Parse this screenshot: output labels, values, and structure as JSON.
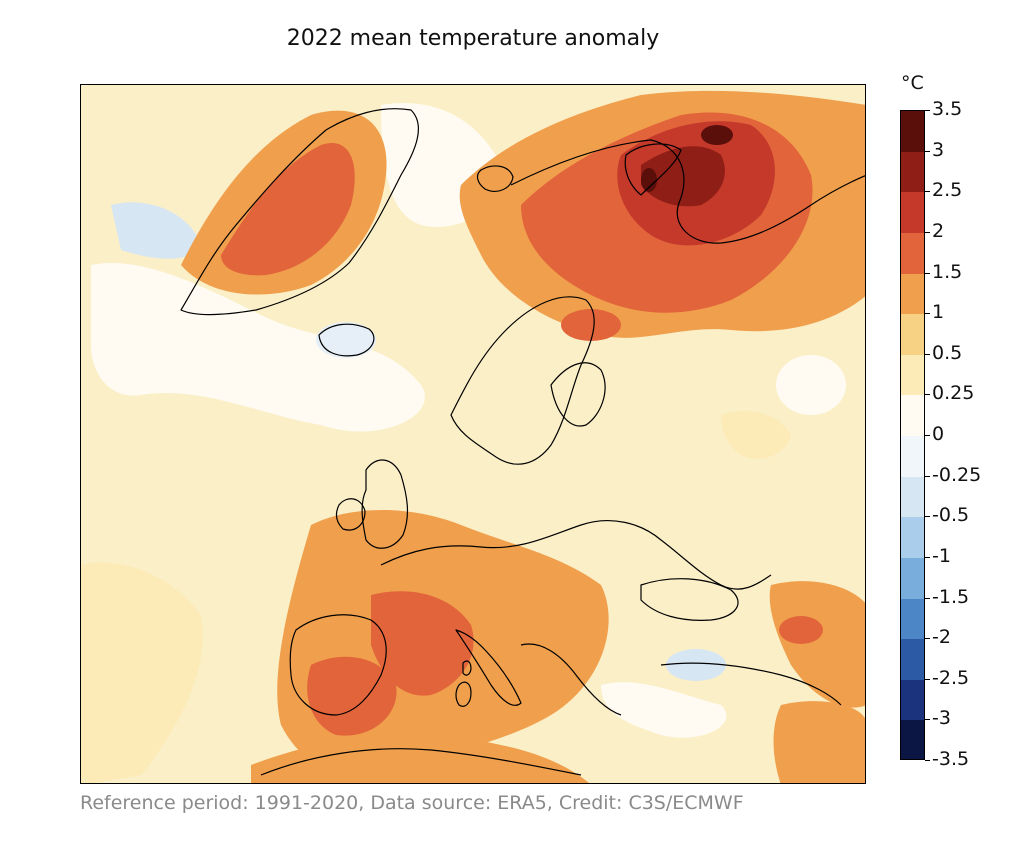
{
  "title": "2022 mean temperature anomaly",
  "footer": "Reference period: 1991-2020, Data source: ERA5, Credit: C3S/ECMWF",
  "colorbar": {
    "unit": "°C",
    "ticks": [
      "3.5",
      "3",
      "2.5",
      "2",
      "1.5",
      "1",
      "0.5",
      "0.25",
      "0",
      "-0.25",
      "-0.5",
      "-1",
      "-1.5",
      "-2",
      "-2.5",
      "-3",
      "-3.5"
    ],
    "colors": [
      "#5b0f0b",
      "#8f1e16",
      "#c5392a",
      "#e2643b",
      "#f0a04d",
      "#f7d184",
      "#fcebb7",
      "#fffbf2",
      "#f1f6fb",
      "#d7e6f3",
      "#a9cdea",
      "#79aedc",
      "#4d86c6",
      "#2d5aa5",
      "#1b337c",
      "#0c1645"
    ]
  },
  "map": {
    "region": "Europe",
    "background_color": "#fbefc8",
    "hot_color": "#e2643b",
    "warm_color": "#f0a04d",
    "cool_color": "#d7e6f3"
  }
}
